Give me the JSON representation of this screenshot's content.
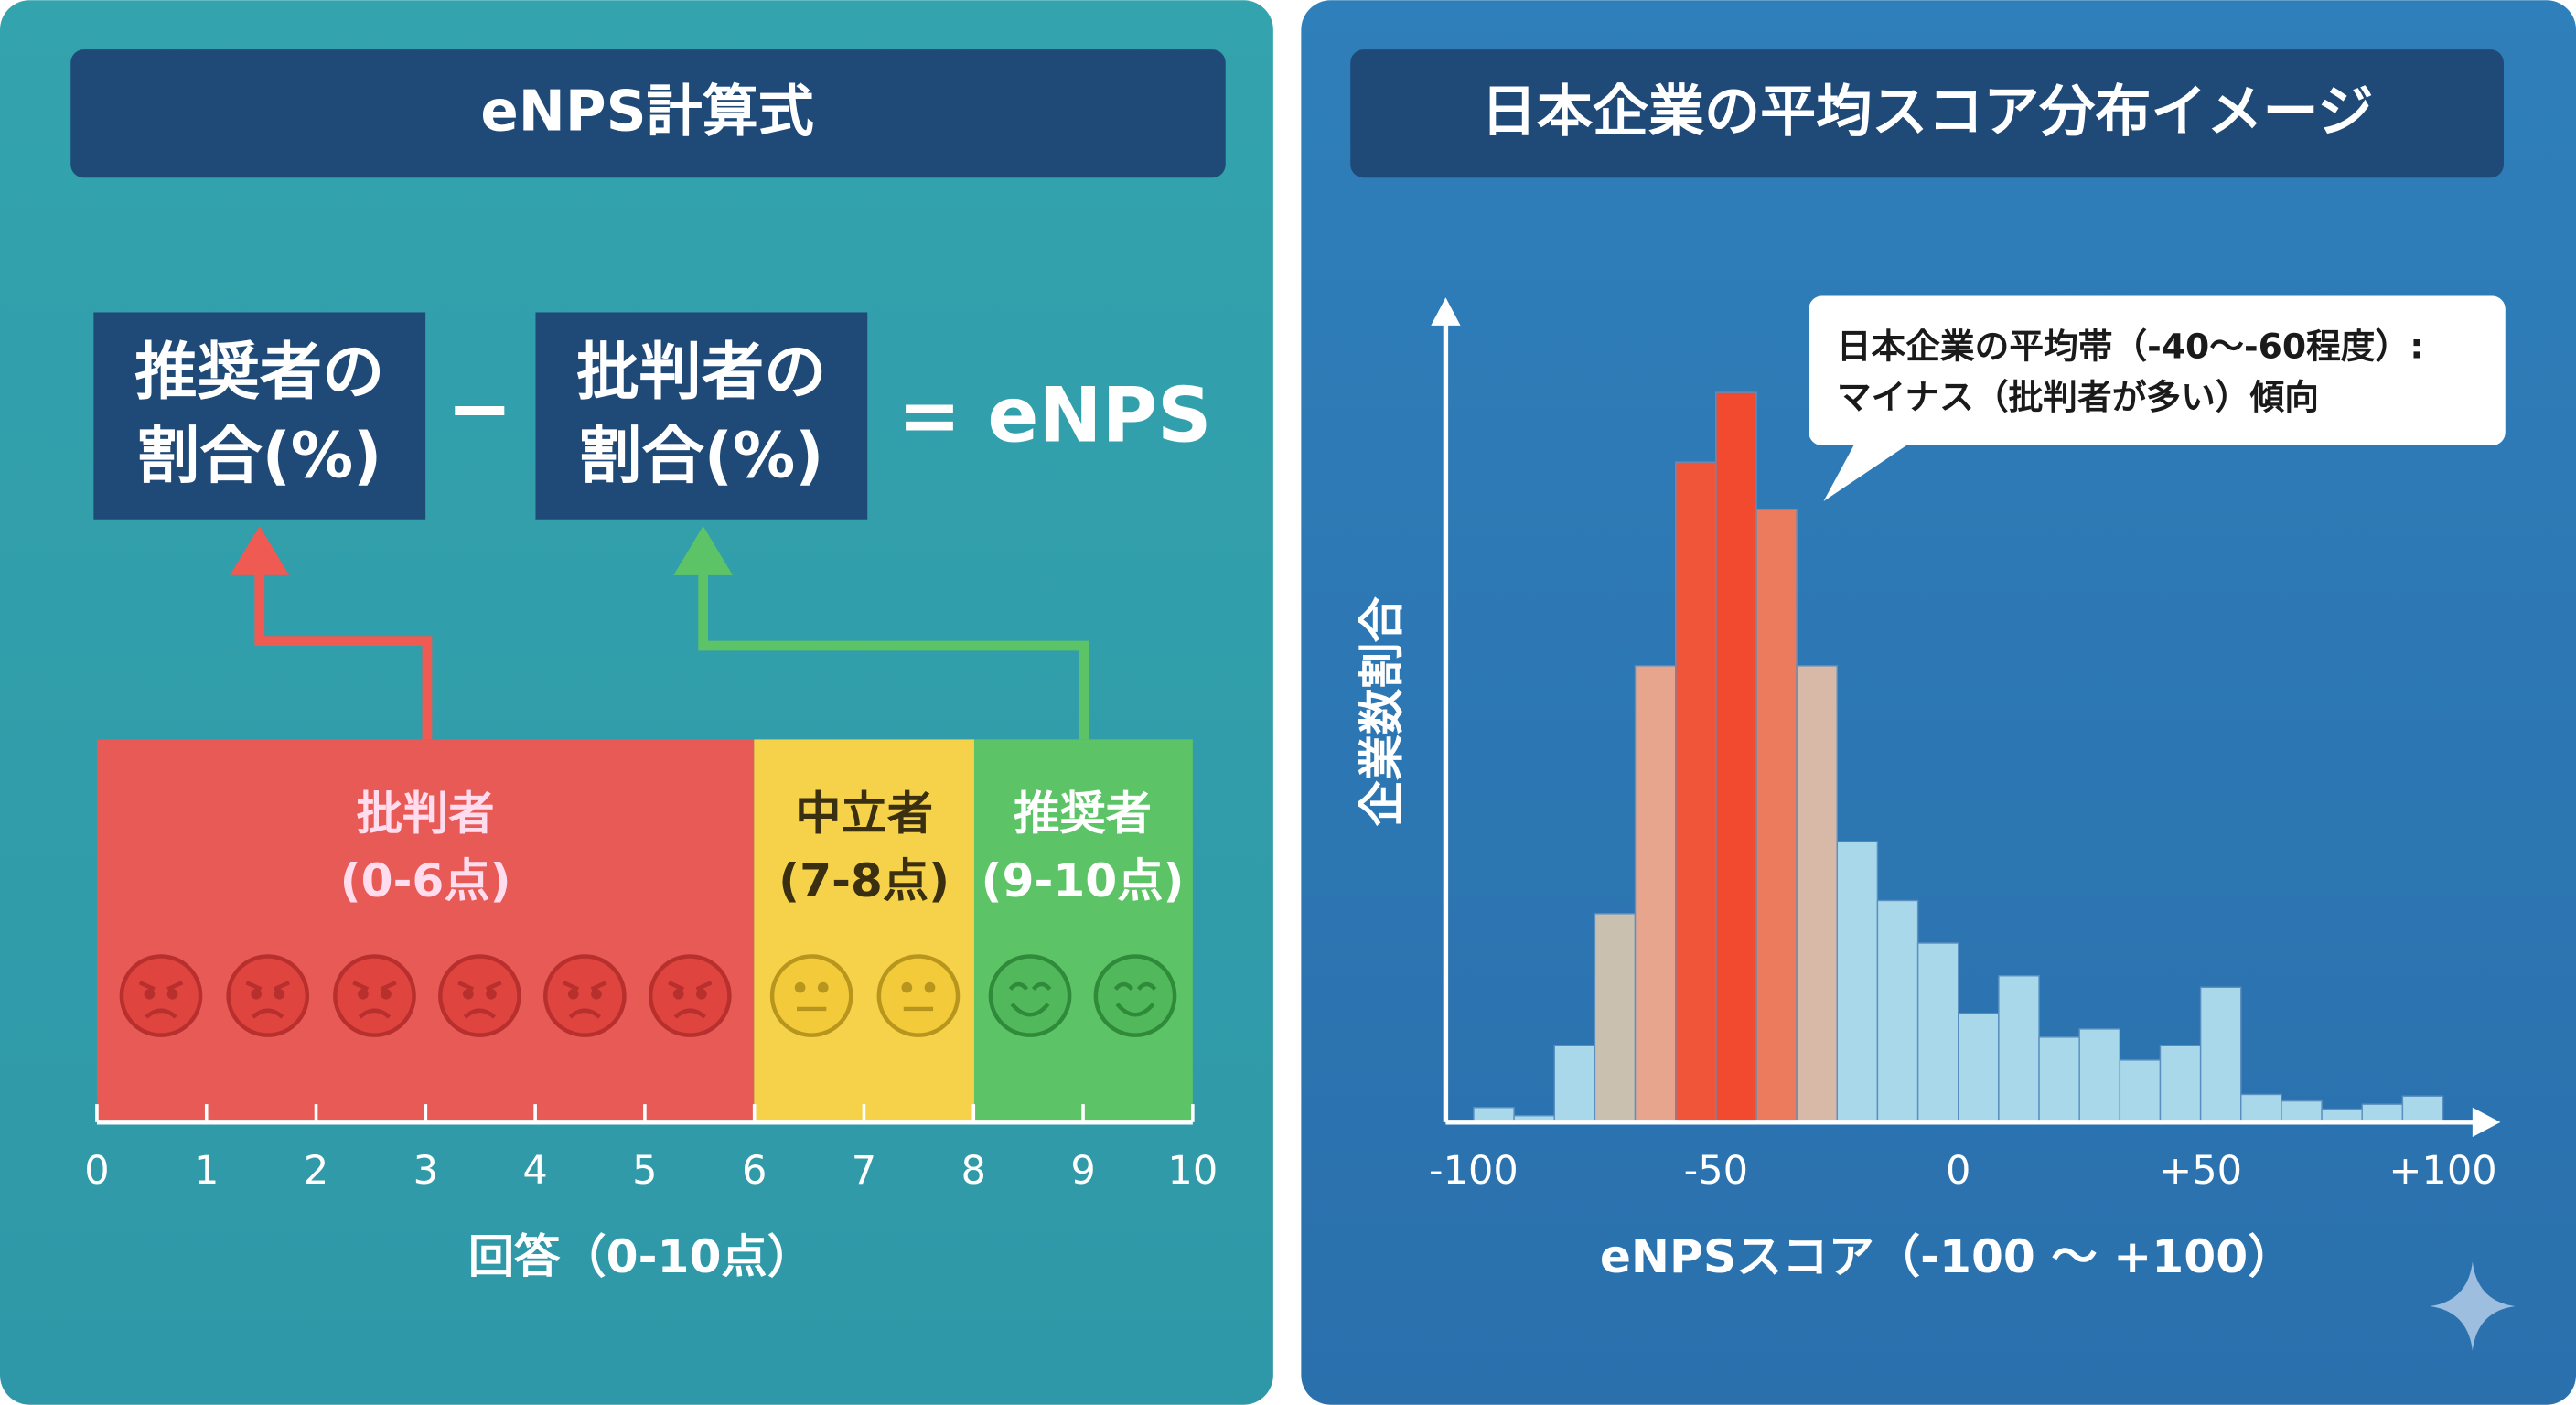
{
  "formula": {
    "title": "eNPS計算式",
    "promoter_box": [
      "推奨者の",
      "割合(%)"
    ],
    "operator": "−",
    "detractor_box": [
      "批判者の",
      "割合(%)"
    ],
    "result": "= eNPS",
    "segments": [
      {
        "name": "批判者",
        "range": "(0-6点)"
      },
      {
        "name": "中立者",
        "range": "(7-8点)"
      },
      {
        "name": "推奨者",
        "range": "(9-10点)"
      }
    ],
    "scale_ticks": [
      0,
      1,
      2,
      3,
      4,
      5,
      6,
      7,
      8,
      9,
      10
    ],
    "scale_label": "回答（0-10点）"
  },
  "chart_data": {
    "type": "histogram",
    "title": "日本企業の平均スコア分布イメージ",
    "callout": [
      "日本企業の平均帯（-40〜-60程度）:",
      "マイナス（批判者が多い）傾向"
    ],
    "ylabel": "企業数割合",
    "xlabel": "eNPSスコア（-100 〜 +100）",
    "bins": [
      -100,
      -91.67,
      -83.33,
      -75,
      -66.67,
      -58.33,
      -50,
      -41.67,
      -33.33,
      -25,
      -16.67,
      -8.33,
      0,
      8.33,
      16.67,
      25,
      33.33,
      41.67,
      50,
      58.33,
      66.67,
      75,
      83.33,
      91.67,
      100
    ],
    "values": [
      1.8,
      0.8,
      9.4,
      25.5,
      55.8,
      80.7,
      89.2,
      74.9,
      55.8,
      34.3,
      27.1,
      21.9,
      13.3,
      17.9,
      10.4,
      11.4,
      7.6,
      9.4,
      16.5,
      3.4,
      2.6,
      1.6,
      2.2,
      3.2
    ],
    "colors": [
      "#a8d8ea",
      "#a8d8ea",
      "#a8d8ea",
      "#c9c0b0",
      "#e8a58e",
      "#f0553a",
      "#f24a2e",
      "#ec7a5c",
      "#d8b8a6",
      "#a8d8ea",
      "#a8d8ea",
      "#a8d8ea",
      "#a8d8ea",
      "#a8d8ea",
      "#a8d8ea",
      "#a8d8ea",
      "#a8d8ea",
      "#a8d8ea",
      "#a8d8ea",
      "#a8d8ea",
      "#a8d8ea",
      "#a8d8ea",
      "#a8d8ea",
      "#a8d8ea"
    ],
    "xlim": [
      -100,
      100
    ],
    "ylim": [
      0,
      100
    ],
    "xticks": [
      -100,
      -50,
      0,
      {
        "value": 50,
        "label": "+50"
      },
      {
        "value": 100,
        "label": "+100"
      }
    ]
  }
}
